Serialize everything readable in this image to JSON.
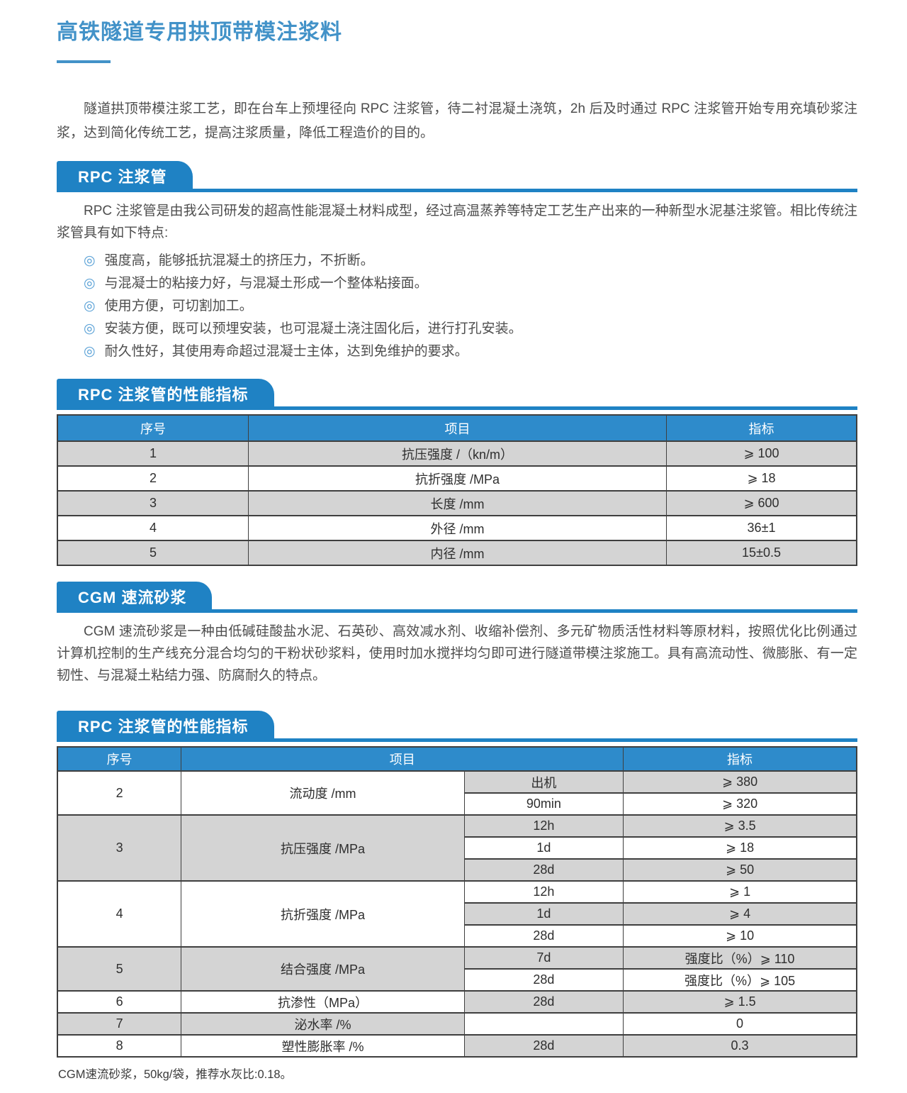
{
  "colors": {
    "accent": "#1f82c4",
    "table_header": "#2e8bcb",
    "title_blue": "#4292c8",
    "row_gray": "#d4d4d4",
    "border_dark": "#3f3f3f",
    "body_text": "#4d4d4d",
    "bullet_icon": "#58a0d6"
  },
  "page": {
    "title": "高铁隧道专用拱顶带模注浆料",
    "intro": "隧道拱顶带模注浆工艺，即在台车上预埋径向 RPC 注浆管，待二衬混凝土浇筑，2h 后及时通过 RPC 注浆管开始专用充填砂浆注浆，达到简化传统工艺，提高注浆质量，降低工程造价的目的。",
    "footnote": "CGM速流砂浆，50kg/袋，推荐水灰比:0.18。",
    "bullet_glyph": "◎"
  },
  "rpc": {
    "banner": "RPC 注浆管",
    "intro": "RPC 注浆管是由我公司研发的超高性能混凝土材料成型，经过高温蒸养等特定工艺生产出来的一种新型水泥基注浆管。相比传统注浆管具有如下特点:",
    "bullets": [
      "强度高，能够抵抗混凝土的挤压力，不折断。",
      "与混凝士的粘接力好，与混凝土形成一个整体粘接面。",
      "使用方便，可切割加工。",
      "安装方便，既可以预埋安装，也可混凝土浇注固化后，进行打孔安装。",
      "耐久性好，其使用寿命超过混凝士主体，达到免维护的要求。"
    ]
  },
  "cgm": {
    "banner": "CGM 速流砂浆",
    "intro": "CGM 速流砂浆是一种由低碱硅酸盐水泥、石英砂、高效减水剂、收缩补偿剂、多元矿物质活性材料等原材料，按照优化比例通过计算机控制的生产线充分混合均匀的干粉状砂浆料，使用时加水搅拌均匀即可进行隧道带模注浆施工。具有高流动性、微膨胀、有一定韧性、与混凝土粘结力强、防腐耐久的特点。"
  },
  "table1": {
    "banner": "RPC 注浆管的性能指标",
    "headers": [
      "序号",
      "项目",
      "指标"
    ],
    "rows": [
      [
        "1",
        "抗压强度 /（kn/m）",
        "⩾ 100"
      ],
      [
        "2",
        "抗折强度 /MPa",
        "⩾ 18"
      ],
      [
        "3",
        "长度 /mm",
        "⩾ 600"
      ],
      [
        "4",
        "外径 /mm",
        "36±1"
      ],
      [
        "5",
        "内径 /mm",
        "15±0.5"
      ]
    ]
  },
  "table2": {
    "banner": "RPC 注浆管的性能指标",
    "headers": [
      "序号",
      "项目",
      "指标"
    ],
    "groups": [
      {
        "no": "2",
        "item": "流动度 /mm",
        "subs": [
          {
            "cond": "出机",
            "val": "⩾ 380"
          },
          {
            "cond": "90min",
            "val": "⩾ 320"
          }
        ]
      },
      {
        "no": "3",
        "item": "抗压强度 /MPa",
        "subs": [
          {
            "cond": "12h",
            "val": "⩾ 3.5"
          },
          {
            "cond": "1d",
            "val": "⩾ 18"
          },
          {
            "cond": "28d",
            "val": "⩾ 50"
          }
        ]
      },
      {
        "no": "4",
        "item": "抗折强度 /MPa",
        "subs": [
          {
            "cond": "12h",
            "val": "⩾ 1"
          },
          {
            "cond": "1d",
            "val": "⩾ 4"
          },
          {
            "cond": "28d",
            "val": "⩾ 10"
          }
        ]
      },
      {
        "no": "5",
        "item": "结合强度 /MPa",
        "subs": [
          {
            "cond": "7d",
            "val": "强度比（%）⩾ 110"
          },
          {
            "cond": "28d",
            "val": "强度比（%）⩾ 105"
          }
        ]
      },
      {
        "no": "6",
        "item": "抗渗性（MPa）",
        "subs": [
          {
            "cond": "28d",
            "val": "⩾ 1.5"
          }
        ]
      },
      {
        "no": "7",
        "item": "泌水率 /%",
        "subs": [
          {
            "cond": "",
            "val": "0"
          }
        ]
      },
      {
        "no": "8",
        "item": "塑性膨胀率 /%",
        "subs": [
          {
            "cond": "28d",
            "val": "0.3"
          }
        ]
      }
    ]
  }
}
